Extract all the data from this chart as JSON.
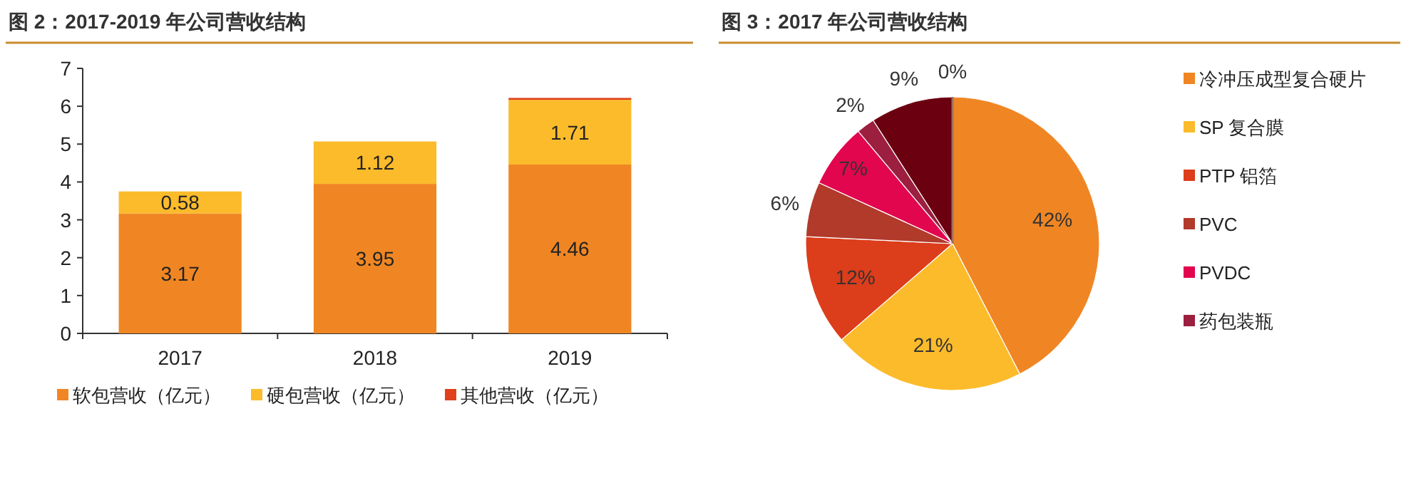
{
  "chart_data": [
    {
      "type": "bar",
      "title": "图 2：2017-2019 年公司营收结构",
      "categories": [
        "2017",
        "2018",
        "2019"
      ],
      "stacked": true,
      "ylim": [
        0,
        7
      ],
      "yticks": [
        0,
        1,
        2,
        3,
        4,
        5,
        6,
        7
      ],
      "grid": false,
      "legend": "bottom",
      "series": [
        {
          "name": "软包营收（亿元）",
          "color": "#f08623",
          "values": [
            3.17,
            3.95,
            4.46
          ],
          "value_labels": [
            "3.17",
            "3.95",
            "4.46"
          ]
        },
        {
          "name": "硬包营收（亿元）",
          "color": "#fbbb2b",
          "values": [
            0.58,
            1.12,
            1.71
          ],
          "value_labels": [
            "0.58",
            "1.12",
            "1.71"
          ]
        },
        {
          "name": "其他营收（亿元）",
          "color": "#e0401c",
          "values": [
            0,
            0,
            0.05
          ]
        }
      ]
    },
    {
      "type": "pie",
      "title": "图 3：2017 年公司营收结构",
      "legend": "right",
      "value_labels": [
        "42%",
        "21%",
        "12%",
        "6%",
        "7%",
        "2%",
        "9%",
        "0%"
      ],
      "categories": [
        "冷冲压成型复合硬片",
        "SP 复合膜",
        "PTP 铝箔",
        "PVC",
        "PVDC",
        "药包装瓶",
        null,
        null
      ],
      "values": [
        42,
        21,
        12,
        6,
        7,
        2,
        9,
        0
      ],
      "colors": [
        "#f08623",
        "#fbbb2b",
        "#dc3d1b",
        "#b13a2b",
        "#e2064f",
        "#9c1f3f",
        "#6a0010",
        "#a07060"
      ]
    }
  ]
}
